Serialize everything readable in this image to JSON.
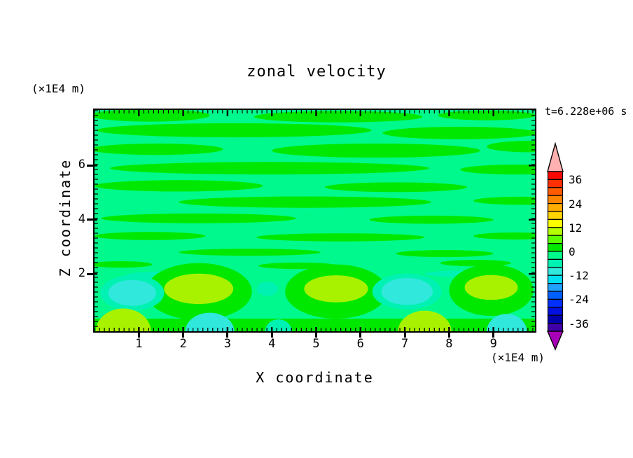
{
  "title": "zonal velocity",
  "timestamp": "t=6.228e+06 s",
  "x_axis": {
    "label": "X coordinate",
    "unit": "(×1E4 m)",
    "tick_labels": [
      "1",
      "2",
      "3",
      "4",
      "5",
      "6",
      "7",
      "8",
      "9"
    ],
    "tick_values": [
      1,
      2,
      3,
      4,
      5,
      6,
      7,
      8,
      9
    ]
  },
  "z_axis": {
    "label": "Z coordinate",
    "unit": "(×1E4 m)",
    "tick_labels": [
      "6",
      "4",
      "2"
    ],
    "tick_values": [
      6,
      4,
      2
    ]
  },
  "colorbar": {
    "tick_labels": [
      "36",
      "24",
      "12",
      "0",
      "-12",
      "-24",
      "-36"
    ],
    "segment_colors": [
      "#F80800",
      "#FF3000",
      "#FF5C00",
      "#FF8400",
      "#FFAC00",
      "#FFD400",
      "#FFFC00",
      "#B4FC00",
      "#5AFC00",
      "#00E800",
      "#00F98C",
      "#00F2B2",
      "#30E8DC",
      "#00E0F0",
      "#20A0FF",
      "#0060FF",
      "#0030FF",
      "#0010E0",
      "#0000AC",
      "#4000A8"
    ],
    "arrow_top_color": "#FFB0B0",
    "arrow_bottom_color": "#A800B8"
  },
  "chart_data": {
    "type": "heatmap",
    "title": "zonal velocity",
    "xlabel": "X coordinate (×1E4 m)",
    "ylabel": "Z coordinate (×1E4 m)",
    "time_label": "t=6.228e+06 s",
    "x_range": [
      0,
      10
    ],
    "z_range": [
      0,
      8.05
    ],
    "levels": {
      "min": -40,
      "max": 40,
      "step": 4,
      "labeled": [
        36,
        24,
        12,
        0,
        -12,
        -24,
        -36
      ]
    },
    "legend_position": "right-colorbar",
    "grid": false,
    "background_value_band": "-4 to 0",
    "palette": {
      "spring": "#00F98C",
      "green": "#00E800",
      "yellowgreen": "#A8F200",
      "aqua": "#00F2B2",
      "cyan": "#30E8DC"
    },
    "features": [
      {
        "type": "background",
        "value_band": "-4 to 0",
        "note": "spring-green field covering most of domain"
      },
      {
        "type": "streaks",
        "value_band": "0 to 4",
        "note": "horizontal green streaks across upper two-thirds"
      },
      {
        "type": "blob",
        "x": 0.85,
        "z": 1.3,
        "value_band": "-12 to -8"
      },
      {
        "type": "blob",
        "x": 2.35,
        "z": 1.45,
        "value_band": "8 to 12"
      },
      {
        "type": "blob",
        "x": 3.9,
        "z": 1.45,
        "value_band": "-8 to -4"
      },
      {
        "type": "blob",
        "x": 5.45,
        "z": 1.45,
        "value_band": "8 to 12"
      },
      {
        "type": "blob",
        "x": 7.05,
        "z": 1.35,
        "value_band": "-12 to -8"
      },
      {
        "type": "blob",
        "x": 8.95,
        "z": 1.5,
        "value_band": "8 to 12"
      },
      {
        "type": "bottom-patch",
        "x": 0.65,
        "value_band": "8 to 12"
      },
      {
        "type": "bottom-patch",
        "x": 2.6,
        "value_band": "-12 to -8"
      },
      {
        "type": "bottom-patch",
        "x": 7.45,
        "value_band": "8 to 12"
      },
      {
        "type": "bottom-patch",
        "x": 9.3,
        "value_band": "-12 to -8"
      }
    ],
    "field": {
      "streaks_green": [
        [
          1.25,
          7.85,
          1.35,
          0.23
        ],
        [
          5.5,
          7.8,
          1.9,
          0.21
        ],
        [
          8.85,
          7.85,
          1.1,
          0.18
        ],
        [
          3.15,
          7.3,
          3.1,
          0.26
        ],
        [
          8.25,
          7.2,
          1.75,
          0.23
        ],
        [
          1.4,
          6.6,
          1.5,
          0.21
        ],
        [
          6.35,
          6.55,
          2.35,
          0.26
        ],
        [
          9.8,
          6.7,
          0.95,
          0.21
        ],
        [
          3.95,
          5.9,
          3.6,
          0.23
        ],
        [
          9.5,
          5.85,
          1.25,
          0.18
        ],
        [
          1.9,
          5.25,
          1.9,
          0.21
        ],
        [
          6.8,
          5.2,
          1.6,
          0.18
        ],
        [
          4.75,
          4.65,
          2.85,
          0.21
        ],
        [
          9.65,
          4.7,
          1.1,
          0.15
        ],
        [
          2.35,
          4.05,
          2.2,
          0.18
        ],
        [
          7.6,
          4.0,
          1.4,
          0.15
        ],
        [
          1.25,
          3.4,
          1.25,
          0.15
        ],
        [
          5.55,
          3.35,
          1.9,
          0.15
        ],
        [
          9.5,
          3.4,
          0.95,
          0.13
        ],
        [
          3.5,
          2.8,
          1.6,
          0.13
        ],
        [
          7.9,
          2.75,
          1.1,
          0.13
        ],
        [
          0.6,
          2.35,
          0.7,
          0.12
        ],
        [
          4.6,
          2.3,
          0.9,
          0.12
        ],
        [
          8.6,
          2.4,
          0.8,
          0.12
        ]
      ],
      "streaks_aqua": [
        [
          1.6,
          1.95,
          0.9,
          0.14
        ],
        [
          8.25,
          2.0,
          0.8,
          0.12
        ]
      ],
      "halos_green": [
        [
          2.35,
          1.35,
          1.2,
          1.05
        ],
        [
          5.45,
          1.35,
          1.15,
          1.0
        ],
        [
          8.95,
          1.4,
          0.95,
          0.95
        ]
      ],
      "cores_yellowgreen": [
        [
          2.35,
          1.45,
          0.78,
          0.56
        ],
        [
          5.45,
          1.45,
          0.72,
          0.5
        ],
        [
          8.95,
          1.5,
          0.6,
          0.46
        ]
      ],
      "rings_aqua": [
        [
          0.85,
          1.3,
          0.72,
          0.66
        ],
        [
          7.05,
          1.35,
          0.78,
          0.66
        ],
        [
          3.9,
          1.45,
          0.24,
          0.26
        ]
      ],
      "cores_cyan": [
        [
          0.85,
          1.3,
          0.54,
          0.48
        ],
        [
          7.05,
          1.35,
          0.58,
          0.5
        ]
      ],
      "bottom_strip": {
        "z_top": 0.35
      },
      "bottom_patches": [
        {
          "x": 0.65,
          "rx": 0.62,
          "rz": 0.42,
          "color": "yellowgreen"
        },
        {
          "x": 7.45,
          "rx": 0.6,
          "rz": 0.38,
          "color": "yellowgreen"
        },
        {
          "x": 2.6,
          "rx": 0.55,
          "rz": 0.34,
          "color": "cyan"
        },
        {
          "x": 9.3,
          "rx": 0.45,
          "rz": 0.32,
          "color": "cyan"
        },
        {
          "x": 4.15,
          "rx": 0.3,
          "rz": 0.22,
          "color": "aqua"
        }
      ]
    }
  }
}
